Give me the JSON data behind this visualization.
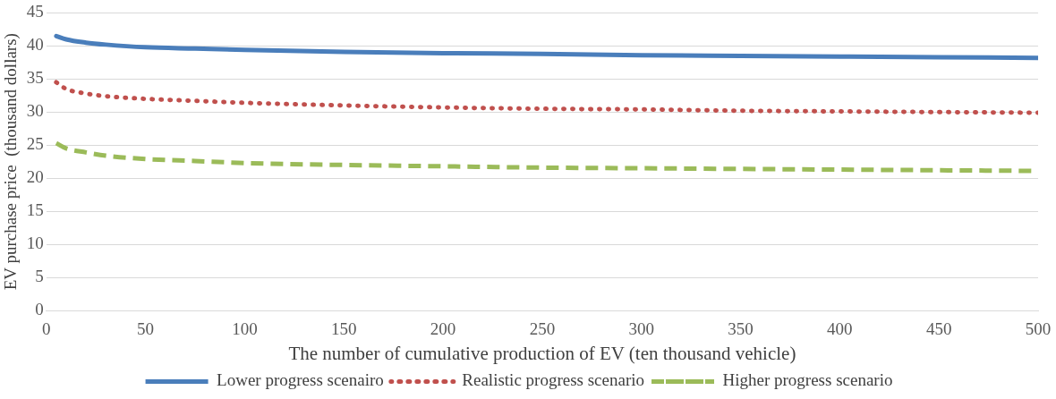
{
  "chart_data": {
    "type": "line",
    "xlabel": "The number of cumulative production of EV (ten thousand vehicle)",
    "ylabel": "EV purchase price  (thousand dollars)",
    "x": [
      5,
      10,
      20,
      30,
      50,
      75,
      100,
      150,
      200,
      250,
      300,
      350,
      400,
      450,
      500
    ],
    "series": [
      {
        "name": "Lower progress scenairo",
        "color": "#4a7ebb",
        "line_style": "solid",
        "values": [
          41.5,
          41,
          40.5,
          40.2,
          39.8,
          39.6,
          39.4,
          39.1,
          38.9,
          38.8,
          38.6,
          38.5,
          38.4,
          38.3,
          38.2
        ]
      },
      {
        "name": "Realistic progress scenario",
        "color": "#c0504d",
        "line_style": "dotted",
        "values": [
          34.5,
          33.5,
          32.8,
          32.4,
          32,
          31.7,
          31.4,
          31,
          30.7,
          30.5,
          30.4,
          30.2,
          30.1,
          30,
          29.9
        ]
      },
      {
        "name": "Higher progress scenario",
        "color": "#9bbb59",
        "line_style": "dashed",
        "values": [
          25.3,
          24.5,
          23.9,
          23.4,
          22.9,
          22.6,
          22.3,
          22,
          21.8,
          21.6,
          21.5,
          21.4,
          21.3,
          21.2,
          21.1
        ]
      }
    ],
    "xlim": [
      0,
      500
    ],
    "xticks": [
      0,
      50,
      100,
      150,
      200,
      250,
      300,
      350,
      400,
      450,
      500
    ],
    "ylim": [
      0,
      45
    ],
    "yticks": [
      0,
      5,
      10,
      15,
      20,
      25,
      30,
      35,
      40,
      45
    ],
    "grid": "y",
    "legend": "bottom",
    "marker": "none"
  }
}
